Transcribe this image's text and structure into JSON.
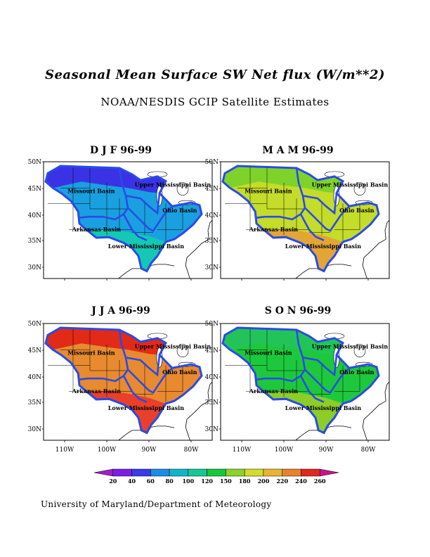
{
  "title": "Seasonal Mean Surface SW Net flux (W/m**2)",
  "subtitle": "NOAA/NESDIS GCIP Satellite Estimates",
  "footer": "University of Maryland/Department of Meteorology",
  "panels": [
    {
      "title": "D J F 96-99",
      "colors": [
        "#3a33e6",
        "#1aa0e0",
        "#14c8b4"
      ]
    },
    {
      "title": "M A M 96-99",
      "colors": [
        "#7fd22a",
        "#c4dc2a",
        "#e1a636"
      ]
    },
    {
      "title": "J J A 96-99",
      "colors": [
        "#e12a18",
        "#e88a30",
        "#e8402a"
      ]
    },
    {
      "title": "S O N 96-99",
      "colors": [
        "#22c45a",
        "#1ec83c",
        "#8ccd28"
      ]
    }
  ],
  "lat_labels": [
    "50N",
    "45N",
    "40N",
    "35N",
    "30N"
  ],
  "lon_labels": [
    "110W",
    "100W",
    "90W",
    "80W"
  ],
  "basins": [
    "Upper Mississippi Basin",
    "Missouri Basin",
    "Ohio Basin",
    "Arkansas Basin",
    "Lower Mississippi Basin"
  ],
  "colorbar": {
    "ticks": [
      "20",
      "40",
      "60",
      "80",
      "100",
      "120",
      "150",
      "180",
      "200",
      "220",
      "240",
      "260"
    ],
    "colors": [
      "#a020c8",
      "#7d1ee6",
      "#3a3ae6",
      "#1a8ce6",
      "#12b4cc",
      "#14c896",
      "#14c83c",
      "#8cd228",
      "#d2dc2a",
      "#e8b432",
      "#e8822e",
      "#e0281e",
      "#c8148c"
    ]
  }
}
